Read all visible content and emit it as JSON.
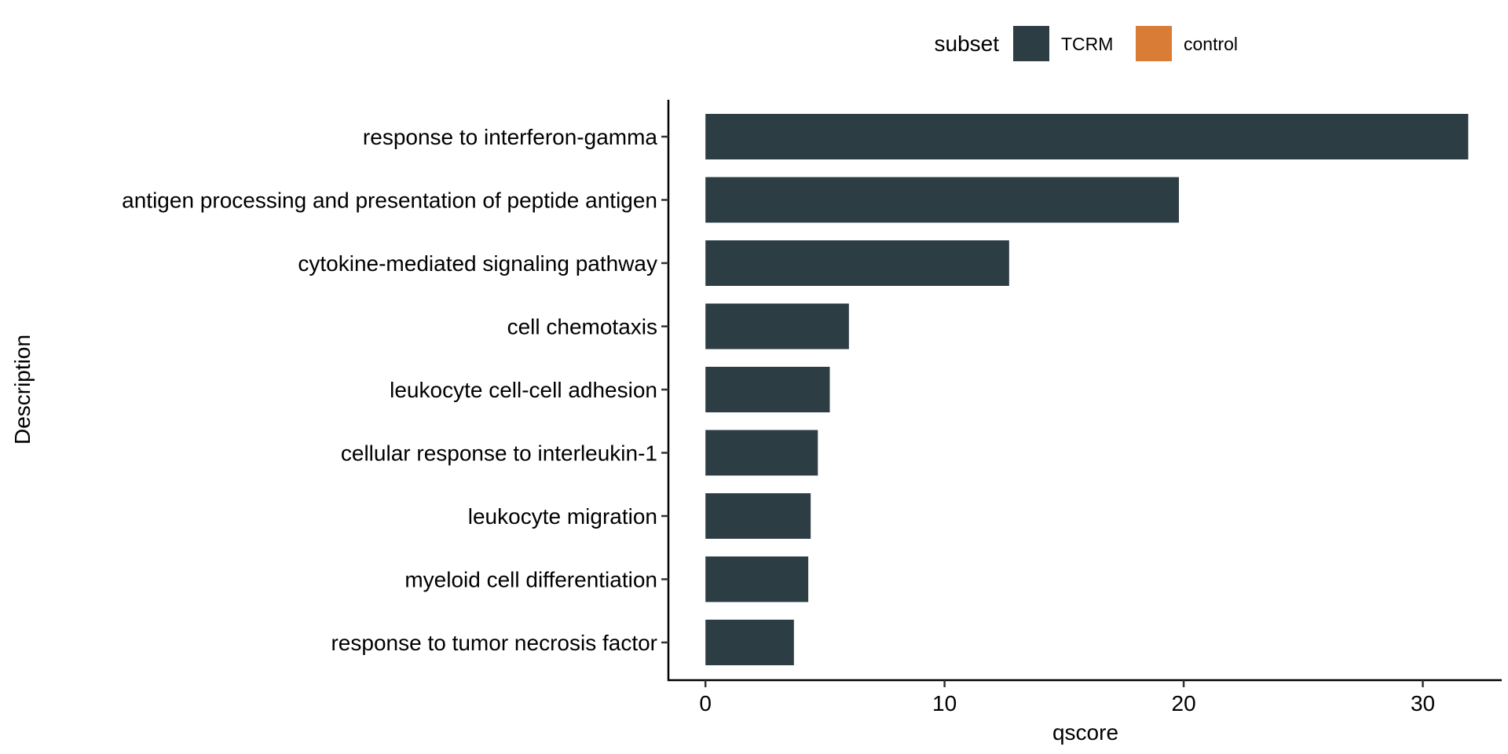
{
  "chart_data": {
    "type": "bar",
    "orientation": "horizontal",
    "title": "",
    "xlabel": "qscore",
    "ylabel": "Description",
    "xlim": [
      -1.55,
      33.3
    ],
    "x_ticks": [
      0,
      10,
      20,
      30
    ],
    "grid": false,
    "categories": [
      "response to interferon-gamma",
      "antigen processing and presentation of peptide antigen",
      "cytokine-mediated signaling pathway",
      "cell chemotaxis",
      "leukocyte cell-cell adhesion",
      "cellular response to interleukin-1",
      "leukocyte migration",
      "myeloid cell differentiation",
      "response to tumor necrosis factor"
    ],
    "series": [
      {
        "name": "TCRM",
        "color": "#2c3e44",
        "values": [
          31.9,
          19.8,
          12.7,
          6.0,
          5.2,
          4.7,
          4.4,
          4.3,
          3.7
        ]
      }
    ],
    "legend": {
      "title": "subset",
      "placement": "top",
      "items": [
        {
          "label": "TCRM",
          "color": "#2c3e44"
        },
        {
          "label": "control",
          "color": "#d97c36"
        }
      ]
    }
  }
}
